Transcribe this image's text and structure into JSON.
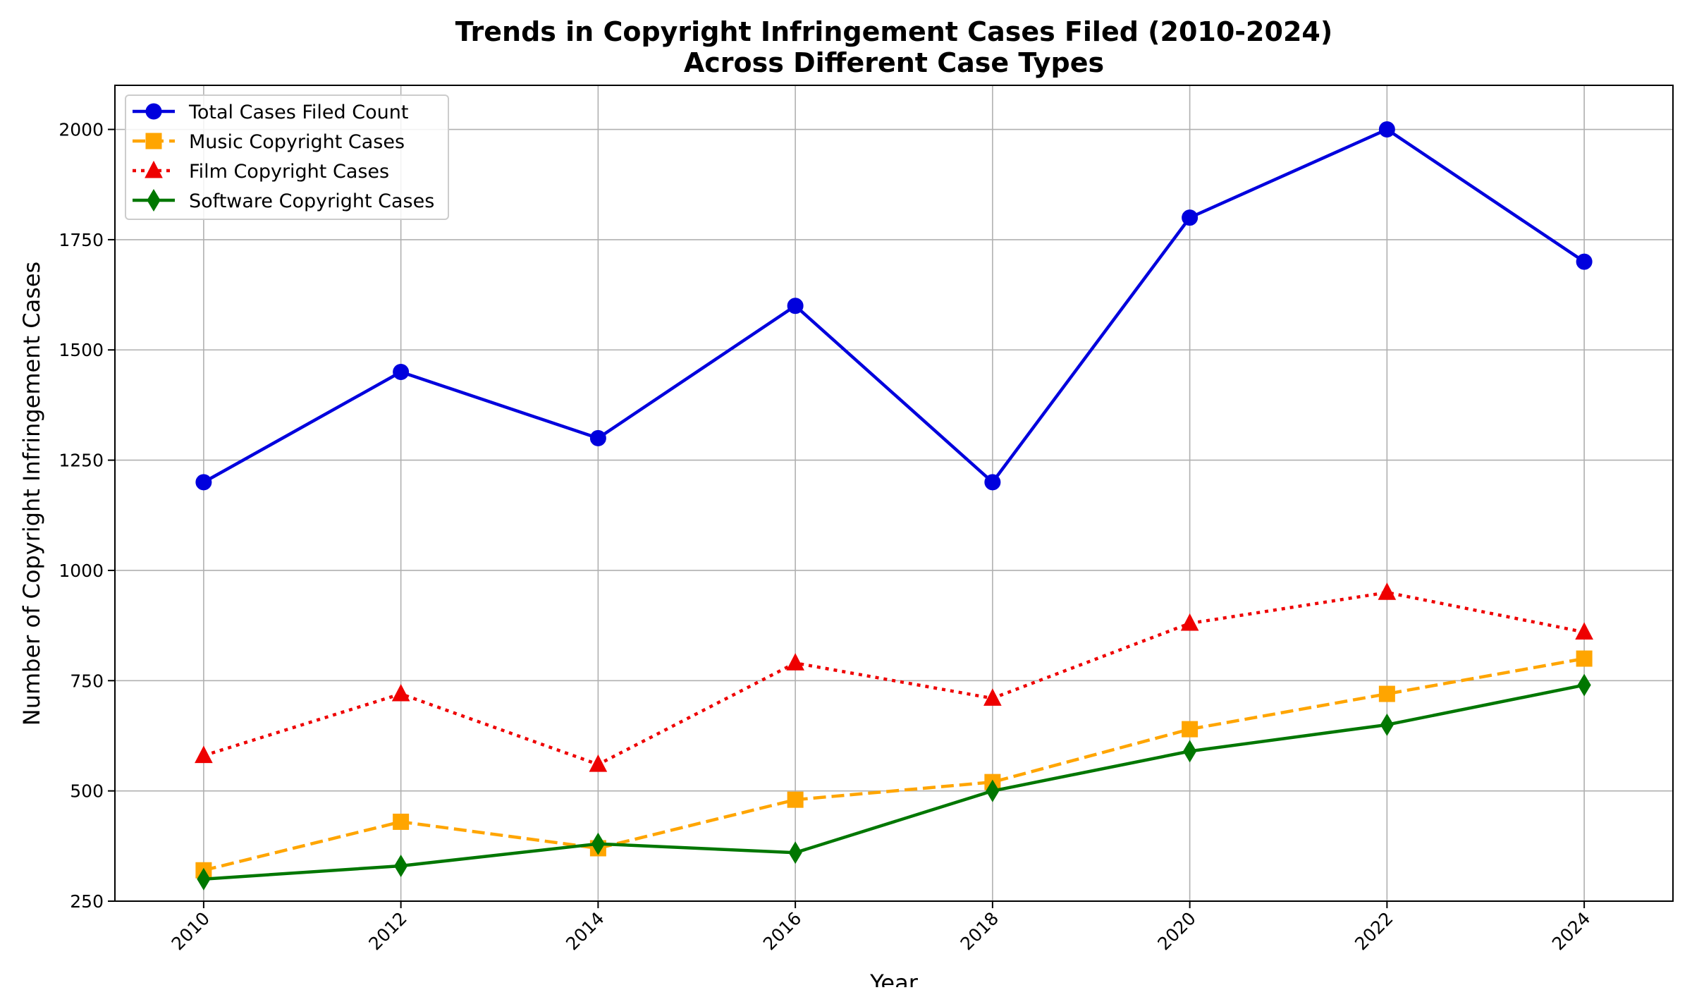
{
  "chart_data": {
    "type": "line",
    "title_line1": "Trends in Copyright Infringement Cases Filed (2010-2024)",
    "title_line2": "Across Different Case Types",
    "xlabel": "Year",
    "ylabel": "Number of Copyright Infringement Cases",
    "x": [
      2010,
      2012,
      2014,
      2016,
      2018,
      2020,
      2022,
      2024
    ],
    "x_tick_labels": [
      "2010",
      "2012",
      "2014",
      "2016",
      "2018",
      "2020",
      "2022",
      "2024"
    ],
    "xlim": [
      2009.1,
      2024.9
    ],
    "ylim": [
      250,
      2100
    ],
    "y_ticks": [
      250,
      500,
      750,
      1000,
      1250,
      1500,
      1750,
      2000
    ],
    "y_tick_labels": [
      "250",
      "500",
      "750",
      "1000",
      "1250",
      "1500",
      "1750",
      "2000"
    ],
    "grid": true,
    "legend_position": "top-left",
    "series": [
      {
        "name": "Total Cases Filed Count",
        "color": "#0000dd",
        "line_style": "solid",
        "marker": "circle",
        "values": [
          1200,
          1450,
          1300,
          1600,
          1200,
          1800,
          2000,
          1700
        ]
      },
      {
        "name": "Music Copyright Cases",
        "color": "#ffa500",
        "line_style": "dashed",
        "marker": "square",
        "values": [
          320,
          430,
          370,
          480,
          520,
          640,
          720,
          800
        ]
      },
      {
        "name": "Film Copyright Cases",
        "color": "#ee0000",
        "line_style": "dotted",
        "marker": "triangle",
        "values": [
          580,
          720,
          560,
          790,
          710,
          880,
          950,
          860
        ]
      },
      {
        "name": "Software Copyright Cases",
        "color": "#007700",
        "line_style": "solid",
        "marker": "diamond",
        "values": [
          300,
          330,
          380,
          360,
          500,
          590,
          650,
          740
        ]
      }
    ]
  }
}
